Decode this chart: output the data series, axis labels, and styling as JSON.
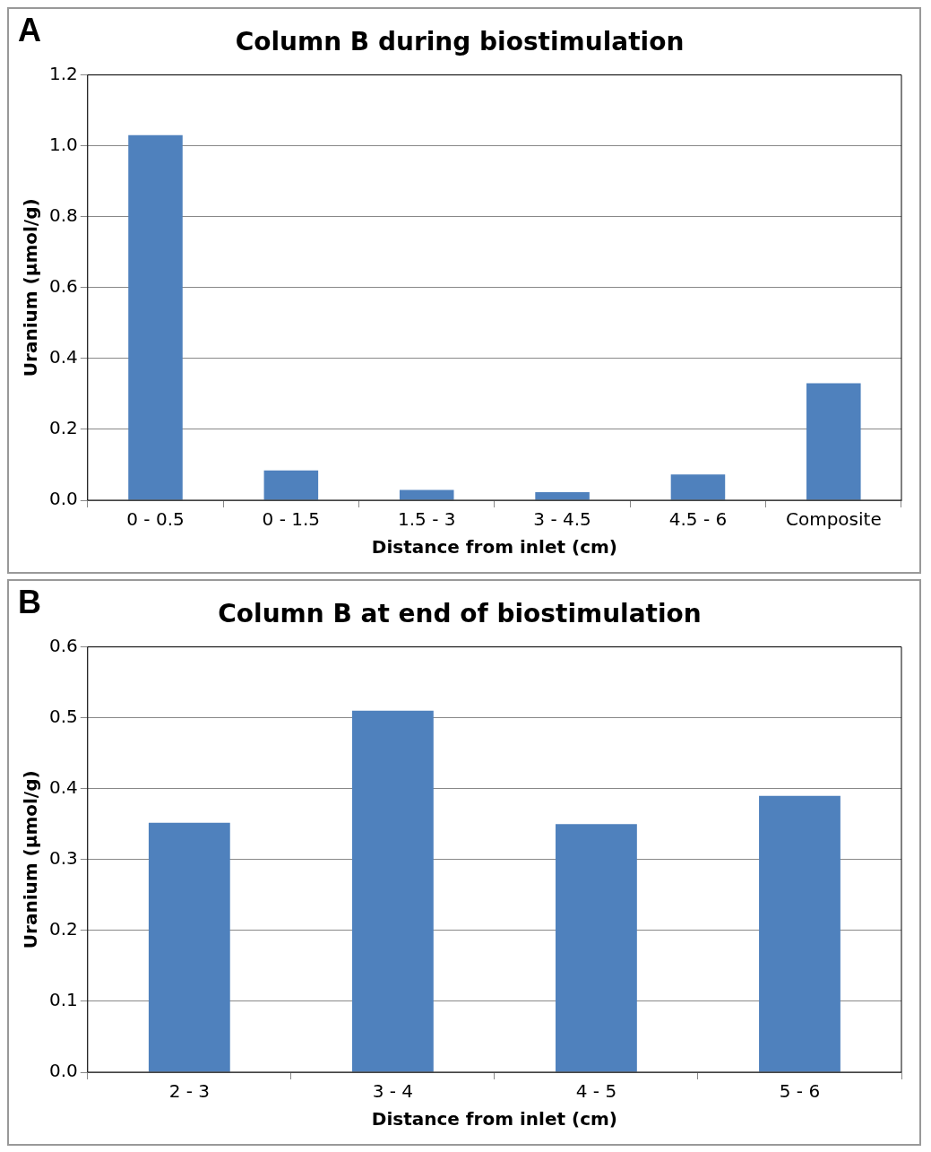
{
  "chart_data": [
    {
      "type": "bar",
      "title": "Column B during biostimulation",
      "xlabel": "Distance from inlet (cm)",
      "ylabel": "Uranium (µmol/g)",
      "annotations": [
        "A"
      ],
      "categories": [
        "0 - 0.5",
        "0 - 1.5",
        "1.5 - 3",
        "3 - 4.5",
        "4.5 - 6",
        "Composite"
      ],
      "values": [
        1.03,
        0.084,
        0.029,
        0.023,
        0.073,
        0.33
      ],
      "color": "#4f81bd",
      "ylim": [
        0,
        1.2
      ],
      "yticks": [
        {
          "value": 0,
          "label": "0.0"
        },
        {
          "value": 0.2,
          "label": "0.2"
        },
        {
          "value": 0.4,
          "label": "0.4"
        },
        {
          "value": 0.6,
          "label": "0.6"
        },
        {
          "value": 0.8,
          "label": "0.8"
        },
        {
          "value": 1,
          "label": "1.0"
        },
        {
          "value": 1.2,
          "label": "1.2"
        }
      ],
      "grid": "y",
      "legend": false
    },
    {
      "type": "bar",
      "title": "Column B at end of biostimulation",
      "xlabel": "Distance from inlet (cm)",
      "ylabel": "Uranium (µmol/g)",
      "annotations": [
        "B"
      ],
      "categories": [
        "2 - 3",
        "3 - 4",
        "4 - 5",
        "5 - 6"
      ],
      "values": [
        0.352,
        0.51,
        0.35,
        0.39
      ],
      "color": "#4f81bd",
      "ylim": [
        0,
        0.6
      ],
      "yticks": [
        {
          "value": 0,
          "label": "0.0"
        },
        {
          "value": 0.1,
          "label": "0.1"
        },
        {
          "value": 0.2,
          "label": "0.2"
        },
        {
          "value": 0.3,
          "label": "0.3"
        },
        {
          "value": 0.4,
          "label": "0.4"
        },
        {
          "value": 0.5,
          "label": "0.5"
        },
        {
          "value": 0.6,
          "label": "0.6"
        }
      ],
      "grid": "y",
      "legend": false
    }
  ]
}
